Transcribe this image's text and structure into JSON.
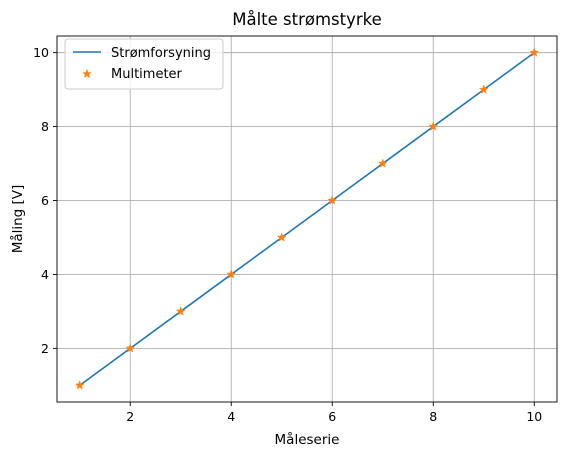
{
  "chart_data": {
    "type": "line",
    "title": "Målte strømstyrke",
    "xlabel": "Måleserie",
    "ylabel": "Måling [V]",
    "xlim": [
      0.55,
      10.45
    ],
    "ylim": [
      0.55,
      10.45
    ],
    "xticks": [
      2,
      4,
      6,
      8,
      10
    ],
    "yticks": [
      2,
      4,
      6,
      8,
      10
    ],
    "grid": true,
    "legend_position": "top-left",
    "series": [
      {
        "name": "Strømforsyning",
        "style": "line",
        "color": "#1f77b4",
        "x": [
          1,
          2,
          3,
          4,
          5,
          6,
          7,
          8,
          9,
          10
        ],
        "y": [
          1,
          2,
          3,
          4,
          5,
          6,
          7,
          8,
          9,
          10
        ]
      },
      {
        "name": "Multimeter",
        "style": "star-markers",
        "color": "#ff7f0e",
        "x": [
          1,
          2,
          3,
          4,
          5,
          6,
          7,
          8,
          9,
          10
        ],
        "y": [
          1,
          2,
          3,
          4,
          5,
          6,
          7,
          8,
          9,
          10
        ]
      }
    ]
  }
}
